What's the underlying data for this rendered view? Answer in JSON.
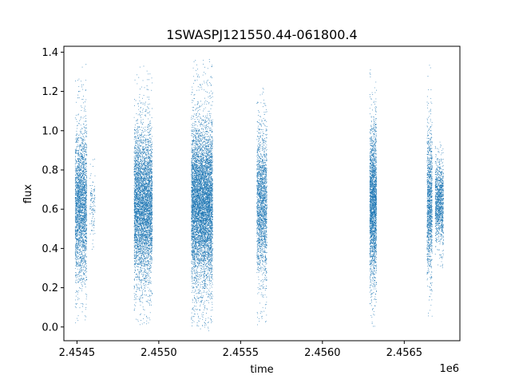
{
  "chart_data": {
    "type": "scatter",
    "title": "1SWASPJ121550.44-061800.4",
    "xlabel": "time",
    "ylabel": "flux",
    "x_offset_label": "1e6",
    "xlim": [
      2454420,
      2456840
    ],
    "ylim": [
      -0.07,
      1.43
    ],
    "x_ticks": [
      2454500,
      2455000,
      2455500,
      2456000,
      2456500,
      2457000
    ],
    "x_tick_labels": [
      "2.4545",
      "2.4550",
      "2.4555",
      "2.4560",
      "2.4565",
      ""
    ],
    "y_ticks": [
      0.0,
      0.2,
      0.4,
      0.6,
      0.8,
      1.0,
      1.2,
      1.4
    ],
    "y_tick_labels": [
      "0.0",
      "0.2",
      "0.4",
      "0.6",
      "0.8",
      "1.0",
      "1.2",
      "1.4"
    ],
    "grid": false,
    "marker_color": "#1f77b4",
    "series_summary": [
      {
        "time_range": [
          2454490,
          2454560
        ],
        "flux_center": 0.62,
        "flux_range": [
          0.02,
          1.36
        ],
        "approx_points": 2600
      },
      {
        "time_range": [
          2454580,
          2454610
        ],
        "flux_center": 0.62,
        "flux_range": [
          0.3,
          0.93
        ],
        "approx_points": 120
      },
      {
        "time_range": [
          2454850,
          2454960
        ],
        "flux_center": 0.62,
        "flux_range": [
          0.01,
          1.33
        ],
        "approx_points": 4800
      },
      {
        "time_range": [
          2455200,
          2455330
        ],
        "flux_center": 0.62,
        "flux_range": [
          -0.02,
          1.37
        ],
        "approx_points": 6800
      },
      {
        "time_range": [
          2455600,
          2455660
        ],
        "flux_center": 0.62,
        "flux_range": [
          0.01,
          1.22
        ],
        "approx_points": 2000
      },
      {
        "time_range": [
          2456290,
          2456330
        ],
        "flux_center": 0.62,
        "flux_range": [
          0.0,
          1.32
        ],
        "approx_points": 2400
      },
      {
        "time_range": [
          2456640,
          2456670
        ],
        "flux_center": 0.64,
        "flux_range": [
          0.05,
          1.36
        ],
        "approx_points": 1200
      },
      {
        "time_range": [
          2456690,
          2456740
        ],
        "flux_center": 0.64,
        "flux_range": [
          0.3,
          0.95
        ],
        "approx_points": 1200
      }
    ]
  }
}
